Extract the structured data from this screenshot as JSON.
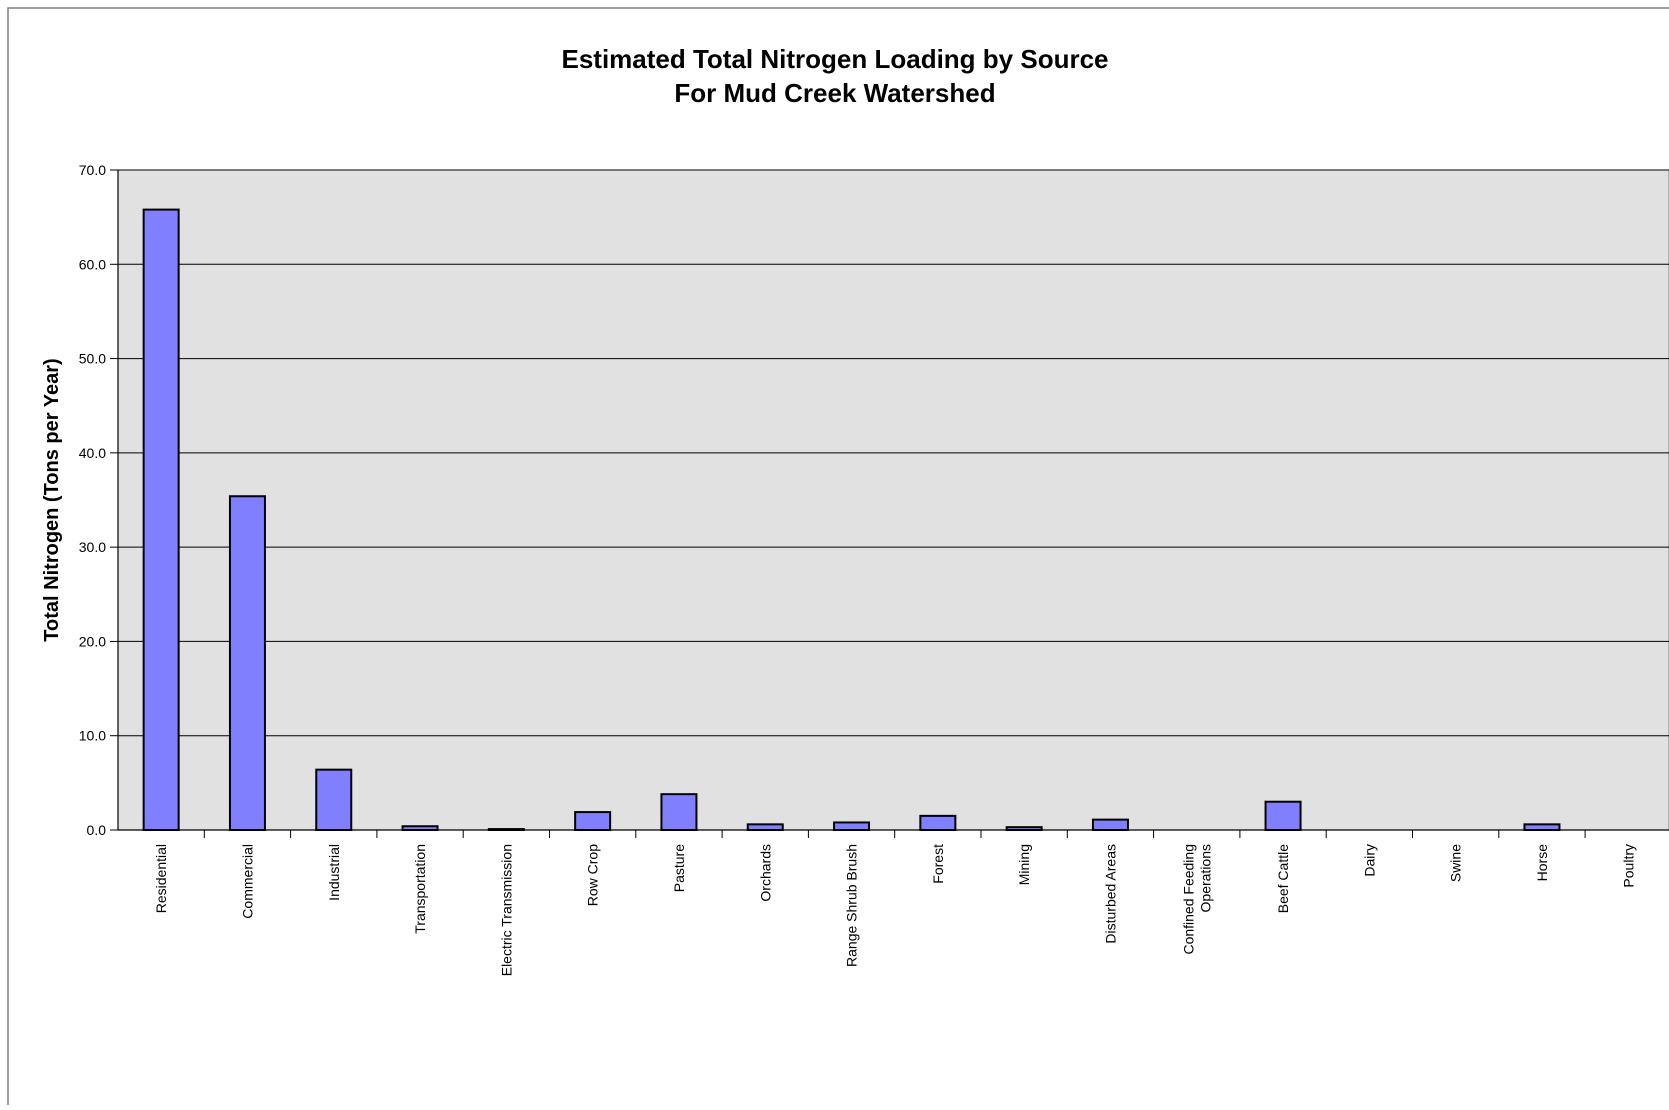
{
  "chart_data": {
    "type": "bar",
    "title": [
      "Estimated Total Nitrogen Loading by Source",
      "For Mud Creek Watershed"
    ],
    "xlabel": "",
    "ylabel": "Total Nitrogen (Tons per Year)",
    "ylim": [
      0,
      70
    ],
    "yticks": [
      "0.0",
      "10.0",
      "20.0",
      "30.0",
      "40.0",
      "50.0",
      "60.0",
      "70.0"
    ],
    "grid": true,
    "legend": "none",
    "categories": [
      [
        "Residential"
      ],
      [
        "Commercial"
      ],
      [
        "Industrial"
      ],
      [
        "Transportation"
      ],
      [
        "Electric Transmission"
      ],
      [
        "Row Crop"
      ],
      [
        "Pasture"
      ],
      [
        "Orchards"
      ],
      [
        "Range Shrub Brush"
      ],
      [
        "Forest"
      ],
      [
        "Mining"
      ],
      [
        "Disturbed Areas"
      ],
      [
        "Confined Feeding",
        "Operations"
      ],
      [
        "Beef Cattle"
      ],
      [
        "Dairy"
      ],
      [
        "Swine"
      ],
      [
        "Horse"
      ],
      [
        "Poultry"
      ]
    ],
    "values": [
      65.8,
      35.4,
      6.4,
      0.4,
      0.1,
      1.9,
      3.8,
      0.6,
      0.8,
      1.5,
      0.3,
      1.1,
      0.0,
      3.0,
      0.0,
      0.0,
      0.6,
      0.0
    ],
    "colors": {
      "bar_fill": "#8080ff",
      "bar_stroke": "#000000",
      "plot_background": "#e1e1e1",
      "gridline": "#000000",
      "frame": "#808080"
    }
  }
}
